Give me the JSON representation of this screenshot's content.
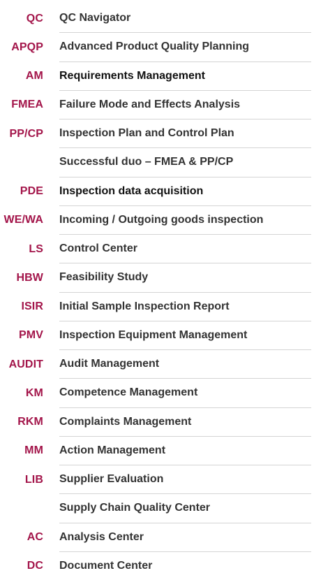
{
  "menu": {
    "items": [
      {
        "code": "QC",
        "label": "QC Navigator"
      },
      {
        "code": "APQP",
        "label": "Advanced Product Quality Planning"
      },
      {
        "code": "AM",
        "label": "Requirements Management"
      },
      {
        "code": "FMEA",
        "label": "Failure Mode and Effects Analysis"
      },
      {
        "code": "PP/CP",
        "label": "Inspection Plan and Control Plan"
      },
      {
        "code": "",
        "label": "Successful duo – FMEA & PP/CP"
      },
      {
        "code": "PDE",
        "label": "Inspection data acquisition"
      },
      {
        "code": "WE/WA",
        "label": "Incoming / Outgoing goods inspection"
      },
      {
        "code": "LS",
        "label": "Control Center"
      },
      {
        "code": "HBW",
        "label": "Feasibility Study"
      },
      {
        "code": "ISIR",
        "label": "Initial Sample Inspection Report"
      },
      {
        "code": "PMV",
        "label": "Inspection Equipment Management"
      },
      {
        "code": "AUDIT",
        "label": "Audit Management"
      },
      {
        "code": "KM",
        "label": "Competence Management"
      },
      {
        "code": "RKM",
        "label": "Complaints Management"
      },
      {
        "code": "MM",
        "label": "Action Management"
      },
      {
        "code": "LIB",
        "label": "Supplier Evaluation"
      },
      {
        "code": "",
        "label": "Supply Chain Quality Center"
      },
      {
        "code": "AC",
        "label": "Analysis Center"
      },
      {
        "code": "DC",
        "label": "Document Center"
      }
    ]
  },
  "colors": {
    "code": "#a3154a",
    "label": "#333333",
    "divider": "#d4d4d4"
  }
}
